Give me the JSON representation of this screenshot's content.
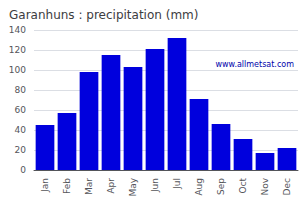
{
  "chart_data": {
    "type": "bar",
    "title": "Garanhuns : precipitation (mm)",
    "categories": [
      "Jan",
      "Feb",
      "Mar",
      "Apr",
      "May",
      "Jun",
      "Jul",
      "Aug",
      "Sep",
      "Oct",
      "Nov",
      "Dec"
    ],
    "values": [
      45,
      57,
      98,
      115,
      103,
      121,
      132,
      71,
      46,
      31,
      17,
      22
    ],
    "color": "#0000DD",
    "ylim": [
      0,
      140
    ],
    "yticks": [
      0,
      20,
      40,
      60,
      80,
      100,
      120,
      140
    ],
    "grid": true,
    "annotations": [
      "www.allmetsat.com"
    ]
  }
}
